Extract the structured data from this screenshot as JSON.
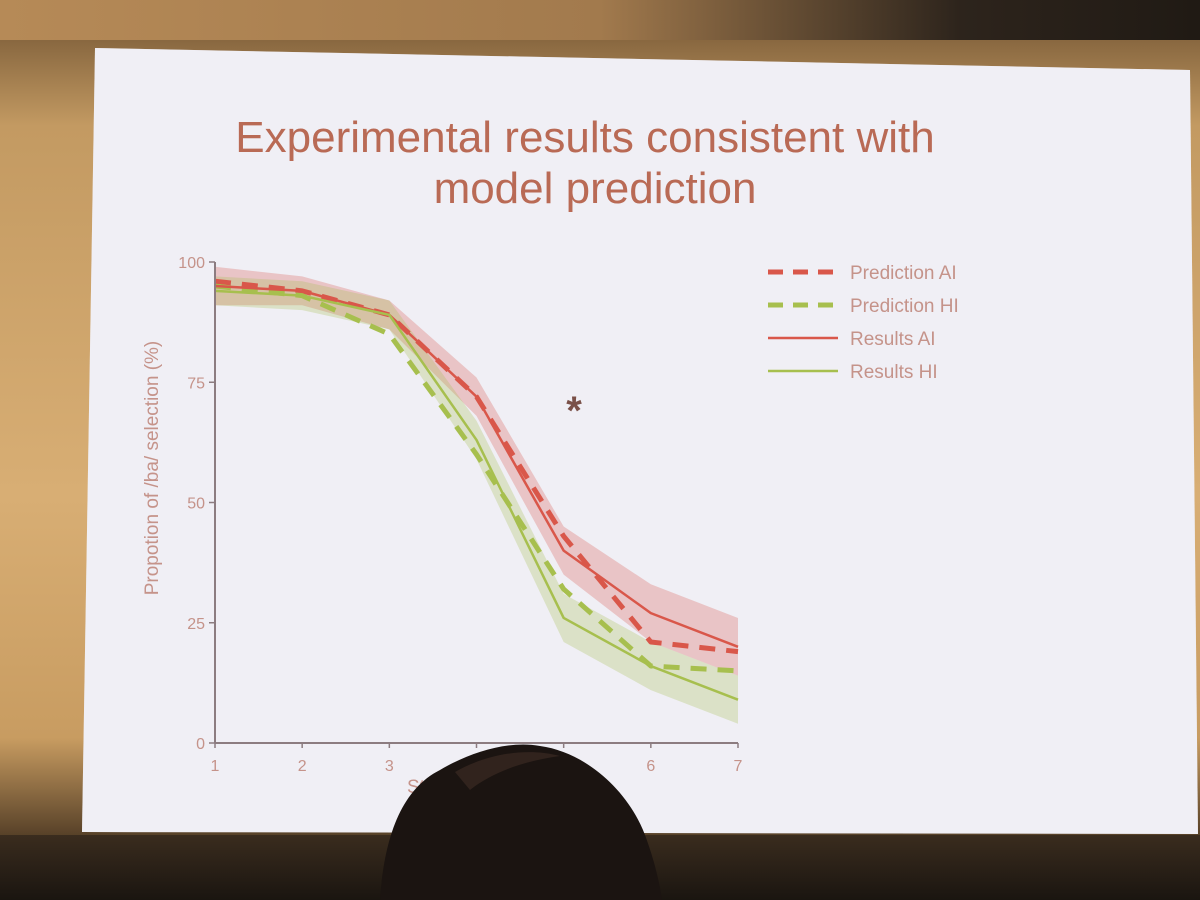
{
  "slide": {
    "title_line1": "Experimental results consistent with",
    "title_line2": "model prediction",
    "significance_marker": "*"
  },
  "chart_data": {
    "type": "line",
    "title": "",
    "xlabel": "Sti",
    "ylabel": "Propotion of /ba/ selection (%)",
    "xlim": [
      1,
      7
    ],
    "ylim": [
      0,
      100
    ],
    "x_ticks": [
      "1",
      "2",
      "3",
      "4",
      "5",
      "6",
      "7"
    ],
    "y_ticks": [
      "0",
      "25",
      "50",
      "75",
      "100"
    ],
    "x": [
      1,
      2,
      3,
      4,
      5,
      6,
      7
    ],
    "series": [
      {
        "name": "Prediction AI",
        "style": "dashed",
        "color": "#d9574a",
        "values": [
          96,
          94,
          89,
          72,
          43,
          21,
          19
        ]
      },
      {
        "name": "Prediction HI",
        "style": "dashed",
        "color": "#a7bf4e",
        "values": [
          95,
          93,
          85,
          60,
          32,
          16,
          15
        ]
      },
      {
        "name": "Results AI",
        "style": "solid",
        "color": "#d9574a",
        "values": [
          95,
          94,
          89,
          72,
          40,
          27,
          20
        ],
        "band": [
          4,
          3,
          3,
          4,
          5,
          6,
          6
        ]
      },
      {
        "name": "Results HI",
        "style": "solid",
        "color": "#a7bf4e",
        "values": [
          94,
          93,
          89,
          63,
          26,
          16,
          9
        ],
        "band": [
          3,
          3,
          3,
          4,
          5,
          5,
          5
        ]
      }
    ],
    "legend": {
      "position": "top-right"
    },
    "grid": false
  }
}
